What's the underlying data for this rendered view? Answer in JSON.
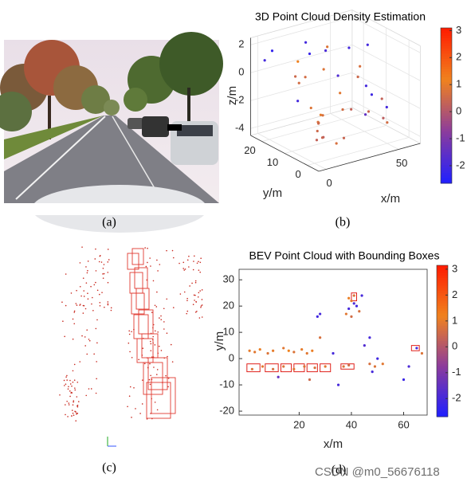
{
  "captions": [
    "(a)",
    "(b)",
    "(c)",
    "(d)"
  ],
  "watermark": "CSDN @m0_56676118",
  "chart_data": [
    {
      "type": "scatter3d",
      "title": "3D Point Cloud Density Estimation",
      "x_label": "x/m",
      "y_label": "y/m",
      "z_label": "z/m",
      "xlim": [
        -5,
        65
      ],
      "ylim": [
        -5,
        25
      ],
      "zlim": [
        -4.5,
        2.5
      ],
      "xticks": [
        0,
        50
      ],
      "yticks": [
        0,
        10,
        20
      ],
      "zticks": [
        -4,
        -2,
        0,
        2
      ],
      "clim": [
        -2.65,
        3.1
      ],
      "cticks": [
        -2,
        -1,
        0,
        1,
        2,
        3
      ],
      "colormap": [
        "#1f1fff",
        "#8c3c9c",
        "#f0821e",
        "#ff1a00"
      ],
      "x": [
        5,
        7,
        3,
        9,
        6,
        12,
        10,
        15,
        4,
        8,
        20,
        22,
        25,
        18,
        30,
        33,
        35,
        38,
        45,
        48,
        50,
        52,
        55,
        40,
        42,
        28,
        26,
        60,
        58,
        2,
        0,
        15,
        17,
        35,
        50,
        45,
        10,
        12,
        55,
        62
      ],
      "y": [
        2,
        3,
        1,
        4,
        0,
        5,
        3,
        6,
        10,
        12,
        15,
        18,
        12,
        20,
        8,
        5,
        10,
        14,
        5,
        8,
        12,
        3,
        10,
        20,
        22,
        22,
        24,
        15,
        18,
        20,
        22,
        0,
        -2,
        0,
        0,
        -3,
        8,
        6,
        20,
        10
      ],
      "z": [
        -2.5,
        -2,
        -3,
        -2.2,
        -2.8,
        -1.8,
        -3.2,
        -2,
        -1,
        0,
        1.5,
        2,
        0.5,
        -0.5,
        -1,
        -2,
        -2.5,
        -0.5,
        -2.5,
        -1,
        0,
        -3,
        -2,
        1,
        0.5,
        -1,
        0,
        1,
        -1.5,
        1.8,
        1,
        -3.5,
        -3,
        -2,
        -3,
        -1.5,
        -1.5,
        -2.5,
        0.5,
        -2.5
      ],
      "c": [
        0.5,
        0.8,
        0.3,
        0.6,
        0.2,
        1,
        0.4,
        0.7,
        -2,
        0.6,
        -2.2,
        -2,
        0.8,
        0.5,
        0.9,
        0.3,
        0.6,
        -1.8,
        0.4,
        -2,
        0.7,
        0.2,
        -2.1,
        0.8,
        -1.9,
        0.6,
        1.2,
        -2,
        0.5,
        -2.3,
        -2,
        0.7,
        0.4,
        -1.5,
        0.6,
        -2,
        0.8,
        0.5,
        -2,
        0.3
      ]
    },
    {
      "type": "scatter",
      "title": "BEV Point Cloud with Bounding Boxes",
      "x_label": "x/m",
      "y_label": "y/m",
      "xlim": [
        -3,
        69
      ],
      "ylim": [
        -21.5,
        34
      ],
      "xticks": [
        20,
        40,
        60
      ],
      "yticks": [
        -20,
        -10,
        0,
        10,
        20,
        30
      ],
      "clim": [
        -2.7,
        3.15
      ],
      "cticks": [
        -2,
        -1,
        0,
        1,
        2,
        3
      ],
      "colormap": [
        "#1f1fff",
        "#8c3c9c",
        "#f0821e",
        "#ff1a00"
      ],
      "box_color": "#e0201a",
      "x": [
        1,
        3,
        5,
        8,
        10,
        14,
        16,
        18,
        21,
        23,
        25,
        28,
        2,
        6,
        10,
        14,
        18,
        22,
        26,
        30,
        37,
        39,
        47,
        49,
        52,
        38,
        39,
        40,
        41,
        42,
        43,
        39,
        41,
        40,
        44,
        28,
        27,
        47,
        45,
        33,
        48,
        60,
        62,
        65,
        67,
        35,
        50,
        24,
        12
      ],
      "y": [
        3,
        2.5,
        3.5,
        2,
        3,
        4,
        3,
        2.5,
        3.5,
        2,
        3,
        8,
        -4,
        -3,
        -4,
        -3,
        -4,
        -3,
        -3.5,
        -3,
        -3,
        -2.5,
        -2,
        -3,
        -2,
        17,
        19,
        22,
        24,
        20,
        18,
        23,
        21,
        16,
        24,
        17,
        16,
        8,
        5,
        2,
        -5,
        -8,
        -3,
        4,
        2,
        -10,
        0,
        -8,
        -7
      ],
      "c": [
        1,
        0.9,
        1.1,
        0.8,
        1,
        0.9,
        1.2,
        0.8,
        1,
        0.9,
        1.1,
        0.7,
        0.8,
        0.9,
        0.7,
        0.8,
        0.9,
        0.8,
        0.7,
        0.9,
        0.8,
        0.6,
        0.7,
        0.8,
        0.9,
        0.9,
        -2,
        1,
        0.8,
        -2.1,
        0.7,
        1.1,
        -1.9,
        0.6,
        -2,
        -2,
        -2.1,
        -2,
        -1.8,
        -2,
        -2,
        -2.2,
        -1.9,
        -2,
        0.8,
        -2,
        -2.1,
        0.5,
        -1.5
      ],
      "boxes": [
        {
          "x": [
            0,
            5
          ],
          "y": [
            -5,
            -2
          ]
        },
        {
          "x": [
            7,
            12
          ],
          "y": [
            -5,
            -2
          ]
        },
        {
          "x": [
            13,
            17
          ],
          "y": [
            -5,
            -2
          ]
        },
        {
          "x": [
            18,
            22
          ],
          "y": [
            -5,
            -2
          ]
        },
        {
          "x": [
            23,
            27
          ],
          "y": [
            -5,
            -2
          ]
        },
        {
          "x": [
            28,
            32
          ],
          "y": [
            -5,
            -2
          ]
        },
        {
          "x": [
            36,
            41
          ],
          "y": [
            -4,
            -2
          ]
        },
        {
          "x": [
            40,
            42
          ],
          "y": [
            22,
            25
          ]
        },
        {
          "x": [
            63,
            66
          ],
          "y": [
            3,
            5
          ]
        }
      ]
    }
  ]
}
